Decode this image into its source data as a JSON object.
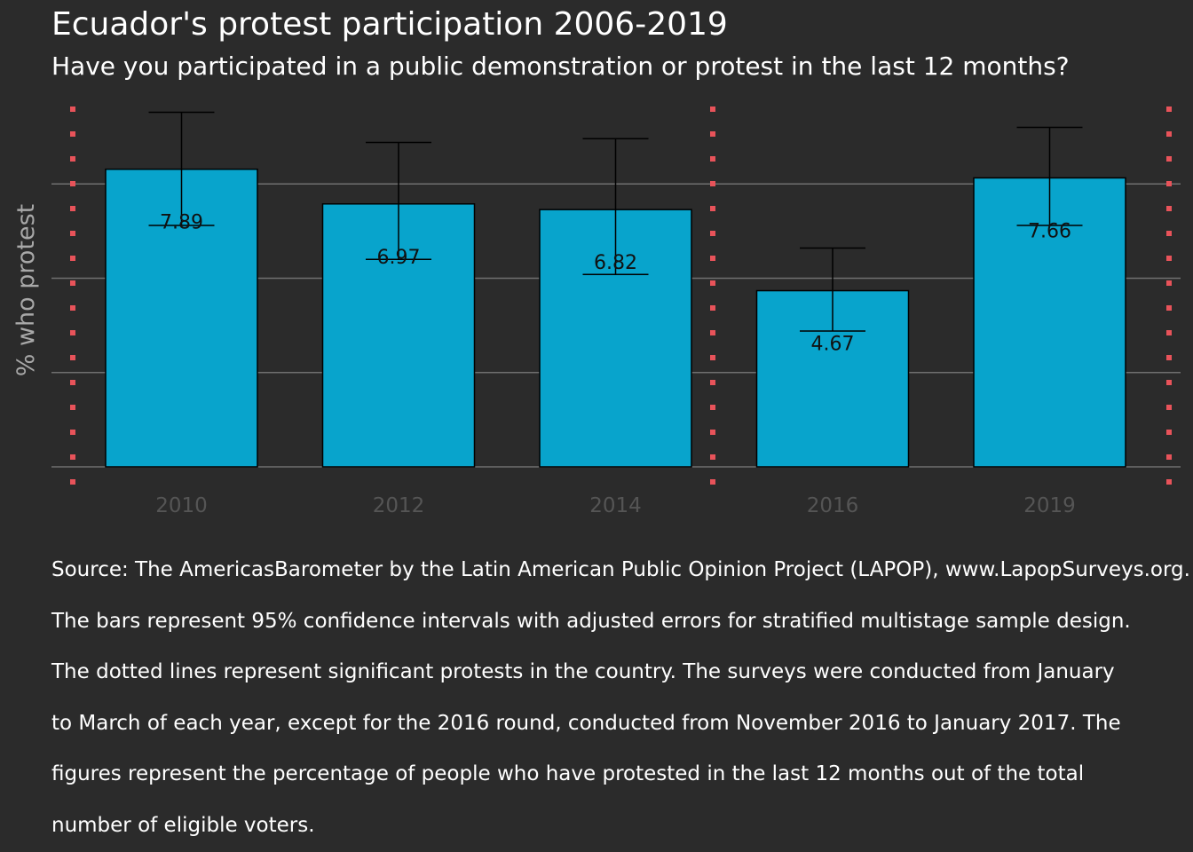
{
  "chart_data": {
    "type": "bar",
    "title": "Ecuador's protest participation 2006-2019",
    "subtitle": "Have you participated in a public demonstration or protest in the last 12 months?",
    "ylabel": "% who protest",
    "xlabel": "",
    "categories": [
      "2010",
      "2012",
      "2014",
      "2016",
      "2019"
    ],
    "values": [
      7.89,
      6.97,
      6.82,
      4.67,
      7.66
    ],
    "value_labels": [
      "7.89",
      "6.97",
      "6.82",
      "4.67",
      "7.66"
    ],
    "error_low": [
      6.4,
      5.5,
      5.1,
      3.6,
      6.4
    ],
    "error_high": [
      9.4,
      8.6,
      8.7,
      5.8,
      9.0
    ],
    "ylim": [
      0,
      9.6
    ],
    "ytick_values": [
      0,
      2.5,
      5,
      7.5
    ],
    "ytick_labels_shown": false,
    "grid": true,
    "significant_protest_lines_after": [
      "2006",
      "2014",
      "2019"
    ],
    "colors": {
      "background": "#2b2b2b",
      "bar": "#08a4cc",
      "bar_border": "#000000",
      "error_bar": "#000000",
      "grid": "#6f6f6f",
      "protest_line": "#e8535a",
      "axis_label": "#a8a8a8",
      "tick_label": "#555555",
      "text": "#ffffff"
    }
  },
  "caption_lines": [
    "Source: The AmericasBarometer by the Latin American Public Opinion Project (LAPOP), www.LapopSurveys.org.",
    "The bars represent 95% confidence intervals with adjusted errors for stratified multistage sample design.",
    "The dotted lines represent significant protests in the country. The surveys were conducted from January",
    "to March of each year, except for the 2016 round, conducted from November 2016 to January 2017. The",
    "figures represent the percentage of people who have protested in the last 12 months out of the total",
    "number of eligible voters."
  ]
}
